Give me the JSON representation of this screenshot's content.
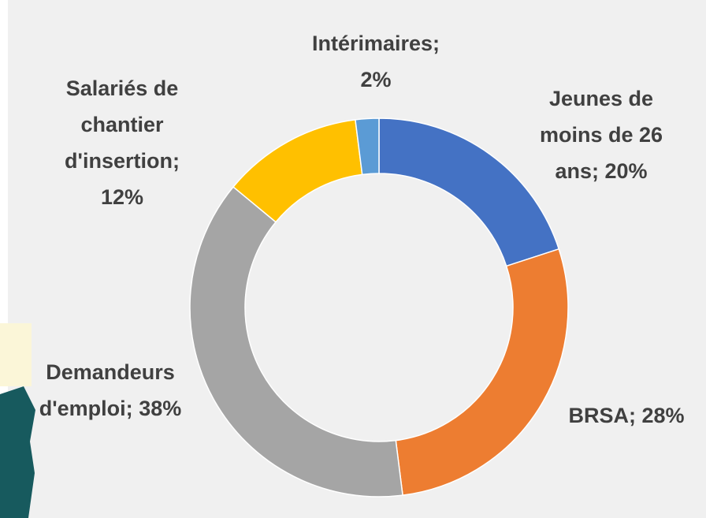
{
  "chart_data": {
    "type": "donut",
    "categories": [
      "Jeunes de moins de 26 ans;",
      "BRSA;",
      "Demandeurs d'emploi;",
      "Salariés de chantier d'insertion;",
      "Intérimaires;"
    ],
    "values": [
      20,
      28,
      38,
      12,
      2
    ],
    "value_labels": [
      "20%",
      "28%",
      "38%",
      "12%",
      "2%"
    ],
    "colors": [
      "#4472c4",
      "#ed7d31",
      "#a5a5a5",
      "#ffc000",
      "#5b9bd5"
    ]
  }
}
